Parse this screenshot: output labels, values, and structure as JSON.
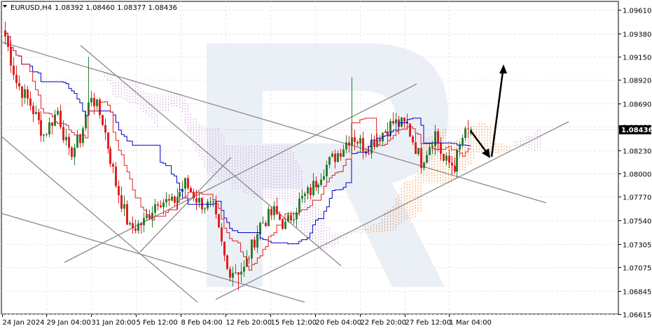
{
  "header": {
    "symbol": "EURUSD,H4",
    "ohlc": "1.08392 1.08460 1.08377 1.08436"
  },
  "chart_data": {
    "type": "candlestick",
    "symbol": "EURUSD",
    "timeframe": "H4",
    "ohlc_header": {
      "open": 1.08392,
      "high": 1.0846,
      "low": 1.08377,
      "close": 1.08436
    },
    "last_price": 1.08436,
    "last_price_label": "1.08436",
    "ylim": [
      1.06615,
      1.09695
    ],
    "y_ticks": [
      "1.09610",
      "1.09380",
      "1.09150",
      "1.08920",
      "1.08690",
      "1.08460",
      "1.08230",
      "1.08000",
      "1.07770",
      "1.07540",
      "1.07305",
      "1.07075",
      "1.06845",
      "1.06615"
    ],
    "x_ticks": [
      "24 Jan 2024",
      "29 Jan 04:00",
      "31 Jan 20:00",
      "5 Feb 12:00",
      "8 Feb 04:00",
      "12 Feb 20:00",
      "15 Feb 12:00",
      "20 Feb 04:00",
      "22 Feb 20:00",
      "27 Feb 12:00",
      "1 Mar 04:00"
    ],
    "grid": true,
    "indicators": [
      "Ichimoku Kinko Hyo (Tenkan-sen, Kijun-sen, Kumo cloud)"
    ],
    "colors": {
      "bull": "#2e7d32",
      "bear": "#e0201e",
      "tenkan": "#e0201e",
      "kijun": "#0000cc",
      "cloud_up": "#f08a3a",
      "cloud_down": "#c99bd6",
      "trendline": "#8a8a8a",
      "watermark": "#e8ecf5",
      "forecast_arrow": "#000000",
      "price_badge": "#000000",
      "grid": "#e6e6e6"
    },
    "forecast": "arrow down toward lower trendline near 1.0826, then up toward 1.0917",
    "candles_sampled": [
      {
        "i": 0,
        "o": 1.0935,
        "h": 1.0942,
        "l": 1.089,
        "c": 1.0898
      },
      {
        "i": 5,
        "o": 1.089,
        "h": 1.0912,
        "l": 1.0866,
        "c": 1.0872
      },
      {
        "i": 10,
        "o": 1.0866,
        "h": 1.0882,
        "l": 1.0828,
        "c": 1.0839
      },
      {
        "i": 15,
        "o": 1.0838,
        "h": 1.0868,
        "l": 1.082,
        "c": 1.086
      },
      {
        "i": 20,
        "o": 1.0862,
        "h": 1.087,
        "l": 1.081,
        "c": 1.082
      },
      {
        "i": 25,
        "o": 1.0822,
        "h": 1.0848,
        "l": 1.08,
        "c": 1.084
      },
      {
        "i": 30,
        "o": 1.0842,
        "h": 1.0915,
        "l": 1.0835,
        "c": 1.088
      },
      {
        "i": 35,
        "o": 1.0878,
        "h": 1.0905,
        "l": 1.0845,
        "c": 1.085
      },
      {
        "i": 40,
        "o": 1.085,
        "h": 1.0852,
        "l": 1.078,
        "c": 1.079
      },
      {
        "i": 45,
        "o": 1.079,
        "h": 1.08,
        "l": 1.073,
        "c": 1.0745
      },
      {
        "i": 50,
        "o": 1.0745,
        "h": 1.077,
        "l": 1.0725,
        "c": 1.076
      },
      {
        "i": 55,
        "o": 1.076,
        "h": 1.079,
        "l": 1.075,
        "c": 1.0778
      },
      {
        "i": 60,
        "o": 1.0778,
        "h": 1.0795,
        "l": 1.0755,
        "c": 1.077
      },
      {
        "i": 65,
        "o": 1.077,
        "h": 1.0798,
        "l": 1.076,
        "c": 1.0788
      },
      {
        "i": 70,
        "o": 1.079,
        "h": 1.0798,
        "l": 1.076,
        "c": 1.0772
      },
      {
        "i": 75,
        "o": 1.0772,
        "h": 1.078,
        "l": 1.074,
        "c": 1.0765
      },
      {
        "i": 80,
        "o": 1.0765,
        "h": 1.0768,
        "l": 1.069,
        "c": 1.07
      },
      {
        "i": 85,
        "o": 1.07,
        "h": 1.0712,
        "l": 1.0688,
        "c": 1.0705
      },
      {
        "i": 90,
        "o": 1.0705,
        "h": 1.0745,
        "l": 1.07,
        "c": 1.0738
      },
      {
        "i": 95,
        "o": 1.0738,
        "h": 1.077,
        "l": 1.0732,
        "c": 1.076
      },
      {
        "i": 100,
        "o": 1.076,
        "h": 1.0775,
        "l": 1.0735,
        "c": 1.0748
      },
      {
        "i": 105,
        "o": 1.075,
        "h": 1.078,
        "l": 1.0745,
        "c": 1.077
      },
      {
        "i": 110,
        "o": 1.077,
        "h": 1.079,
        "l": 1.076,
        "c": 1.0785
      },
      {
        "i": 115,
        "o": 1.0788,
        "h": 1.0828,
        "l": 1.0785,
        "c": 1.0805
      },
      {
        "i": 120,
        "o": 1.0805,
        "h": 1.083,
        "l": 1.0792,
        "c": 1.082
      },
      {
        "i": 125,
        "o": 1.0822,
        "h": 1.0895,
        "l": 1.0815,
        "c": 1.0838
      },
      {
        "i": 130,
        "o": 1.0838,
        "h": 1.0848,
        "l": 1.0812,
        "c": 1.0825
      },
      {
        "i": 135,
        "o": 1.0825,
        "h": 1.0845,
        "l": 1.0815,
        "c": 1.084
      },
      {
        "i": 140,
        "o": 1.0842,
        "h": 1.0862,
        "l": 1.0832,
        "c": 1.085
      },
      {
        "i": 145,
        "o": 1.085,
        "h": 1.0868,
        "l": 1.0838,
        "c": 1.0845
      },
      {
        "i": 150,
        "o": 1.0845,
        "h": 1.0852,
        "l": 1.0798,
        "c": 1.0812
      },
      {
        "i": 155,
        "o": 1.0812,
        "h": 1.085,
        "l": 1.0802,
        "c": 1.084
      },
      {
        "i": 160,
        "o": 1.084,
        "h": 1.0845,
        "l": 1.0798,
        "c": 1.0805
      },
      {
        "i": 165,
        "o": 1.0808,
        "h": 1.0848,
        "l": 1.0802,
        "c": 1.0835
      },
      {
        "i": 168,
        "o": 1.08392,
        "h": 1.0846,
        "l": 1.08377,
        "c": 1.08436
      }
    ]
  }
}
